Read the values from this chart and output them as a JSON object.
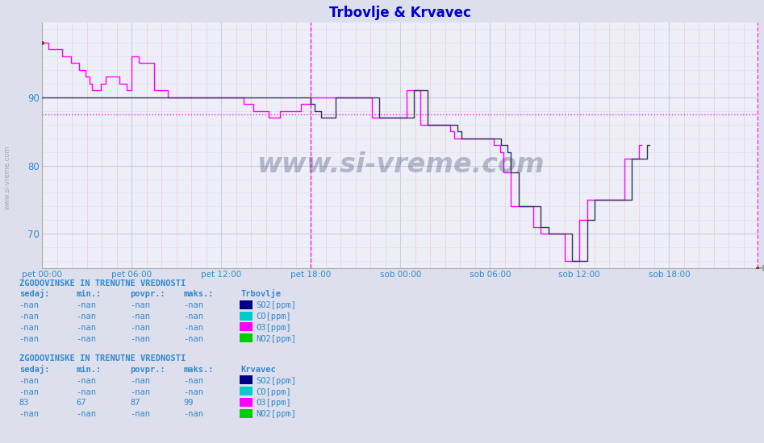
{
  "title": "Trbovlje & Krvavec",
  "title_color": "#0000cc",
  "bg_color": "#dde0ec",
  "plot_bg_color": "#eeeef8",
  "grid_color_major_y": "#ccccdd",
  "grid_color_minor_y": "#dddde8",
  "grid_color_major_x": "#ccccdd",
  "grid_color_minor_x": "#e8c8c8",
  "ylim": [
    65.0,
    101.0
  ],
  "yticks": [
    70,
    80,
    90
  ],
  "text_color": "#3388cc",
  "watermark": "www.si-vreme.com",
  "watermark_color": "#1a2a5a",
  "xtick_labels": [
    "pet 00:00",
    "pet 06:00",
    "pet 12:00",
    "pet 18:00",
    "sob 00:00",
    "sob 06:00",
    "sob 12:00",
    "sob 18:00"
  ],
  "xtick_positions": [
    0,
    72,
    144,
    216,
    288,
    360,
    432,
    504
  ],
  "total_points": 576,
  "vline1_x": 216,
  "hline_y": 87.5,
  "o3_color": "#ff00ff",
  "dark_color": "#333355",
  "legend_so2_color": "#000088",
  "legend_co_color": "#00cccc",
  "legend_o3_color": "#ff00ff",
  "legend_no2_color": "#00cc00",
  "trbovlje_label": "Trbovlje",
  "krvavec_label": "Krvavec",
  "table_header": "ZGODOVINSKE IN TRENUTNE VREDNOSTI",
  "col_headers": [
    "sedaj:",
    "min.:",
    "povpr.:",
    "maks.:"
  ],
  "trbovlje_rows": [
    [
      "-nan",
      "-nan",
      "-nan",
      "-nan",
      "SO2[ppm]"
    ],
    [
      "-nan",
      "-nan",
      "-nan",
      "-nan",
      "CO[ppm]"
    ],
    [
      "-nan",
      "-nan",
      "-nan",
      "-nan",
      "O3[ppm]"
    ],
    [
      "-nan",
      "-nan",
      "-nan",
      "-nan",
      "NO2[ppm]"
    ]
  ],
  "krvavec_rows": [
    [
      "-nan",
      "-nan",
      "-nan",
      "-nan",
      "SO2[ppm]"
    ],
    [
      "-nan",
      "-nan",
      "-nan",
      "-nan",
      "CO[ppm]"
    ],
    [
      "83",
      "67",
      "87",
      "99",
      "O3[ppm]"
    ],
    [
      "-nan",
      "-nan",
      "-nan",
      "-nan",
      "NO2[ppm]"
    ]
  ],
  "o3_krvavec": [
    98,
    98,
    98,
    98,
    98,
    97,
    97,
    97,
    97,
    97,
    97,
    97,
    97,
    97,
    97,
    97,
    96,
    96,
    96,
    96,
    96,
    96,
    96,
    95,
    95,
    95,
    95,
    95,
    95,
    95,
    94,
    94,
    94,
    94,
    94,
    93,
    93,
    93,
    92,
    92,
    91,
    91,
    91,
    91,
    91,
    91,
    91,
    92,
    92,
    92,
    92,
    93,
    93,
    93,
    93,
    93,
    93,
    93,
    93,
    93,
    93,
    93,
    92,
    92,
    92,
    92,
    92,
    92,
    91,
    91,
    91,
    91,
    96,
    96,
    96,
    96,
    96,
    96,
    95,
    95,
    95,
    95,
    95,
    95,
    95,
    95,
    95,
    95,
    95,
    95,
    91,
    91,
    91,
    91,
    91,
    91,
    91,
    91,
    91,
    91,
    91,
    90,
    90,
    90,
    90,
    90,
    90,
    90,
    90,
    90,
    90,
    90,
    90,
    90,
    90,
    90,
    90,
    90,
    90,
    90,
    90,
    90,
    90,
    90,
    90,
    90,
    90,
    90,
    90,
    90,
    90,
    90,
    90,
    90,
    90,
    90,
    90,
    90,
    90,
    90,
    90,
    90,
    90,
    90,
    90,
    90,
    90,
    90,
    90,
    90,
    90,
    90,
    90,
    90,
    90,
    90,
    90,
    90,
    90,
    90,
    90,
    90,
    89,
    89,
    89,
    89,
    89,
    89,
    89,
    89,
    88,
    88,
    88,
    88,
    88,
    88,
    88,
    88,
    88,
    88,
    88,
    88,
    87,
    87,
    87,
    87,
    87,
    87,
    87,
    87,
    87,
    88,
    88,
    88,
    88,
    88,
    88,
    88,
    88,
    88,
    88,
    88,
    88,
    88,
    88,
    88,
    88,
    88,
    89,
    89,
    89,
    89,
    89,
    89,
    89,
    89,
    90,
    90,
    90,
    90,
    90,
    90,
    90,
    90,
    90,
    90,
    90,
    90,
    90,
    90,
    90,
    90,
    90,
    90,
    90,
    90,
    90,
    90,
    90,
    90,
    90,
    90,
    90,
    90,
    90,
    90,
    90,
    90,
    90,
    90,
    90,
    90,
    90,
    90,
    90,
    90,
    90,
    90,
    90,
    90,
    90,
    90,
    90,
    90,
    90,
    87,
    87,
    87,
    87,
    87,
    87,
    87,
    87,
    87,
    87,
    87,
    87,
    87,
    87,
    87,
    87,
    87,
    87,
    87,
    87,
    87,
    87,
    87,
    87,
    87,
    87,
    87,
    87,
    91,
    91,
    91,
    91,
    91,
    91,
    91,
    91,
    91,
    91,
    91,
    86,
    86,
    86,
    86,
    86,
    86,
    86,
    86,
    86,
    86,
    86,
    86,
    86,
    86,
    86,
    86,
    86,
    86,
    86,
    86,
    86,
    86,
    86,
    86,
    85,
    85,
    85,
    84,
    84,
    84,
    84,
    84,
    84,
    84,
    84,
    84,
    84,
    84,
    84,
    84,
    84,
    84,
    84,
    84,
    84,
    84,
    84,
    84,
    84,
    84,
    84,
    84,
    84,
    84,
    84,
    84,
    84,
    84,
    84,
    83,
    83,
    83,
    83,
    83,
    82,
    82,
    82,
    79,
    79,
    79,
    79,
    79,
    79,
    74,
    74,
    74,
    74,
    74,
    74,
    74,
    74,
    74,
    74,
    74,
    74,
    74,
    74,
    74,
    74,
    74,
    74,
    71,
    71,
    71,
    71,
    71,
    71,
    70,
    70,
    70,
    70,
    70,
    70,
    70,
    70,
    70,
    70,
    70,
    70,
    70,
    70,
    70,
    70,
    70,
    70,
    70,
    66,
    66,
    66,
    66,
    66,
    66,
    66,
    66,
    66,
    66,
    66,
    66,
    72,
    72,
    72,
    72,
    72,
    72,
    75,
    75,
    75,
    75,
    75,
    75,
    75,
    75,
    75,
    75,
    75,
    75,
    75,
    75,
    75,
    75,
    75,
    75,
    75,
    75,
    75,
    75,
    75,
    75,
    75,
    75,
    75,
    75,
    75,
    75,
    81,
    81,
    81,
    81,
    81,
    81,
    81,
    81,
    81,
    81,
    81,
    81,
    83,
    83,
    83
  ],
  "o3_dark": [
    90,
    90,
    90,
    90,
    90,
    90,
    90,
    90,
    90,
    90,
    90,
    90,
    90,
    90,
    90,
    90,
    90,
    90,
    90,
    90,
    90,
    90,
    90,
    90,
    90,
    90,
    90,
    90,
    90,
    90,
    90,
    90,
    90,
    90,
    90,
    90,
    90,
    90,
    90,
    90,
    90,
    90,
    90,
    90,
    90,
    90,
    90,
    90,
    90,
    90,
    90,
    90,
    90,
    90,
    90,
    90,
    90,
    90,
    90,
    90,
    90,
    90,
    90,
    90,
    90,
    90,
    90,
    90,
    90,
    90,
    90,
    90,
    90,
    90,
    90,
    90,
    90,
    90,
    90,
    90,
    90,
    90,
    90,
    90,
    90,
    90,
    90,
    90,
    90,
    90,
    90,
    90,
    90,
    90,
    90,
    90,
    90,
    90,
    90,
    90,
    90,
    90,
    90,
    90,
    90,
    90,
    90,
    90,
    90,
    90,
    90,
    90,
    90,
    90,
    90,
    90,
    90,
    90,
    90,
    90,
    90,
    90,
    90,
    90,
    90,
    90,
    90,
    90,
    90,
    90,
    90,
    90,
    90,
    90,
    90,
    90,
    90,
    90,
    90,
    90,
    90,
    90,
    90,
    90,
    90,
    90,
    90,
    90,
    90,
    90,
    90,
    90,
    90,
    90,
    90,
    90,
    90,
    90,
    90,
    90,
    90,
    90,
    90,
    90,
    90,
    90,
    90,
    90,
    90,
    90,
    90,
    90,
    90,
    90,
    90,
    90,
    90,
    90,
    90,
    90,
    90,
    90,
    90,
    90,
    90,
    90,
    90,
    90,
    90,
    90,
    90,
    90,
    90,
    90,
    90,
    90,
    90,
    90,
    90,
    90,
    90,
    90,
    90,
    90,
    90,
    90,
    90,
    90,
    90,
    90,
    90,
    90,
    90,
    90,
    90,
    90,
    89,
    89,
    89,
    88,
    88,
    88,
    88,
    88,
    87,
    87,
    87,
    87,
    87,
    87,
    87,
    87,
    87,
    87,
    87,
    87,
    90,
    90,
    90,
    90,
    90,
    90,
    90,
    90,
    90,
    90,
    90,
    90,
    90,
    90,
    90,
    90,
    90,
    90,
    90,
    90,
    90,
    90,
    90,
    90,
    90,
    90,
    90,
    90,
    90,
    90,
    90,
    90,
    90,
    90,
    90,
    87,
    87,
    87,
    87,
    87,
    87,
    87,
    87,
    87,
    87,
    87,
    87,
    87,
    87,
    87,
    87,
    87,
    87,
    87,
    87,
    87,
    87,
    87,
    87,
    87,
    87,
    87,
    87,
    91,
    91,
    91,
    91,
    91,
    91,
    91,
    91,
    91,
    91,
    91,
    86,
    86,
    86,
    86,
    86,
    86,
    86,
    86,
    86,
    86,
    86,
    86,
    86,
    86,
    86,
    86,
    86,
    86,
    86,
    86,
    86,
    86,
    86,
    86,
    85,
    85,
    85,
    84,
    84,
    84,
    84,
    84,
    84,
    84,
    84,
    84,
    84,
    84,
    84,
    84,
    84,
    84,
    84,
    84,
    84,
    84,
    84,
    84,
    84,
    84,
    84,
    84,
    84,
    84,
    84,
    84,
    84,
    84,
    84,
    83,
    83,
    83,
    83,
    83,
    82,
    82,
    82,
    79,
    79,
    79,
    79,
    79,
    79,
    74,
    74,
    74,
    74,
    74,
    74,
    74,
    74,
    74,
    74,
    74,
    74,
    74,
    74,
    74,
    74,
    74,
    74,
    71,
    71,
    71,
    71,
    71,
    71,
    70,
    70,
    70,
    70,
    70,
    70,
    70,
    70,
    70,
    70,
    70,
    70,
    70,
    70,
    70,
    70,
    70,
    70,
    70,
    66,
    66,
    66,
    66,
    66,
    66,
    66,
    66,
    66,
    66,
    66,
    66,
    72,
    72,
    72,
    72,
    72,
    72,
    75,
    75,
    75,
    75,
    75,
    75,
    75,
    75,
    75,
    75,
    75,
    75,
    75,
    75,
    75,
    75,
    75,
    75,
    75,
    75,
    75,
    75,
    75,
    75,
    75,
    75,
    75,
    75,
    75,
    75,
    81,
    81,
    81,
    81,
    81,
    81,
    81,
    81,
    81,
    81,
    81,
    81,
    83,
    83,
    83
  ]
}
